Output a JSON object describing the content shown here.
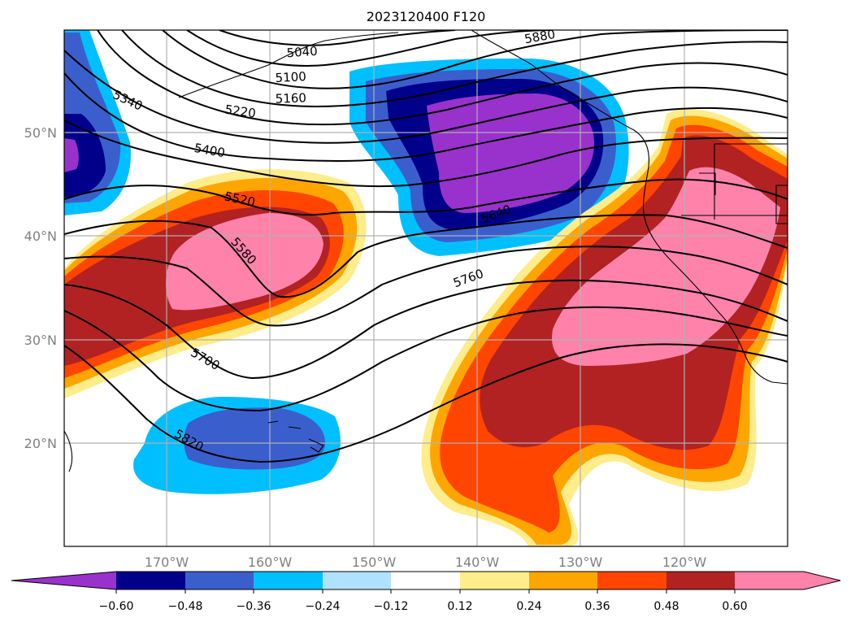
{
  "title": "2023120400 F120",
  "map": {
    "lat_labels": [
      "50°N",
      "40°N",
      "30°N",
      "20°N"
    ],
    "lon_labels": [
      "170°W",
      "160°W",
      "150°W",
      "140°W",
      "130°W",
      "120°W"
    ],
    "contour_labels": [
      "5040",
      "5100",
      "5160",
      "5220",
      "5340",
      "5400",
      "5520",
      "5580",
      "5640",
      "5700",
      "5760",
      "5820",
      "5880"
    ]
  },
  "colorbar": {
    "ticks": [
      "−0.60",
      "−0.48",
      "−0.36",
      "−0.24",
      "−0.12",
      "0.12",
      "0.24",
      "0.36",
      "0.48",
      "0.60"
    ],
    "colors": {
      "neg_extreme": "#9932cc",
      "neg_060": "#00008b",
      "neg_048": "#3a5fcd",
      "neg_036": "#00bfff",
      "neg_024": "#b0e2ff",
      "neutral": "#ffffff",
      "pos_012": "#ffec8b",
      "pos_024": "#ffa500",
      "pos_036": "#ff4500",
      "pos_048": "#b22222",
      "pos_extreme": "#ff82ab"
    }
  }
}
